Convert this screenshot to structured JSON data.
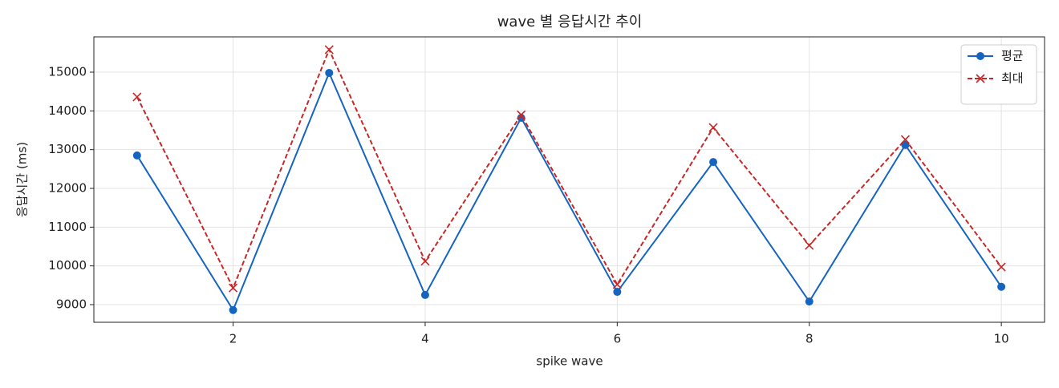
{
  "chart_data": {
    "type": "line",
    "title": "wave 별 응답시간 추이",
    "x_label": "spike wave",
    "y_label": "응답시간 (ms)",
    "x": [
      1,
      2,
      3,
      4,
      5,
      6,
      7,
      8,
      9,
      10
    ],
    "series": [
      {
        "name": "평균",
        "color": "#1565c0",
        "marker": "circle",
        "linestyle": "solid",
        "values": [
          12850,
          8860,
          14980,
          9250,
          13820,
          9330,
          12680,
          9080,
          13120,
          9460
        ]
      },
      {
        "name": "최대",
        "color": "#c62828",
        "marker": "x",
        "linestyle": "dashed",
        "values": [
          14360,
          9430,
          15580,
          10120,
          13900,
          9520,
          13570,
          10530,
          13260,
          9970
        ]
      }
    ],
    "xlim": [
      0.55,
      10.45
    ],
    "xticks": [
      2,
      4,
      6,
      8,
      10
    ],
    "ylim": [
      8545,
      15910
    ],
    "yticks": [
      9000,
      10000,
      11000,
      12000,
      13000,
      14000,
      15000
    ],
    "grid": true,
    "legend": "upper right"
  }
}
